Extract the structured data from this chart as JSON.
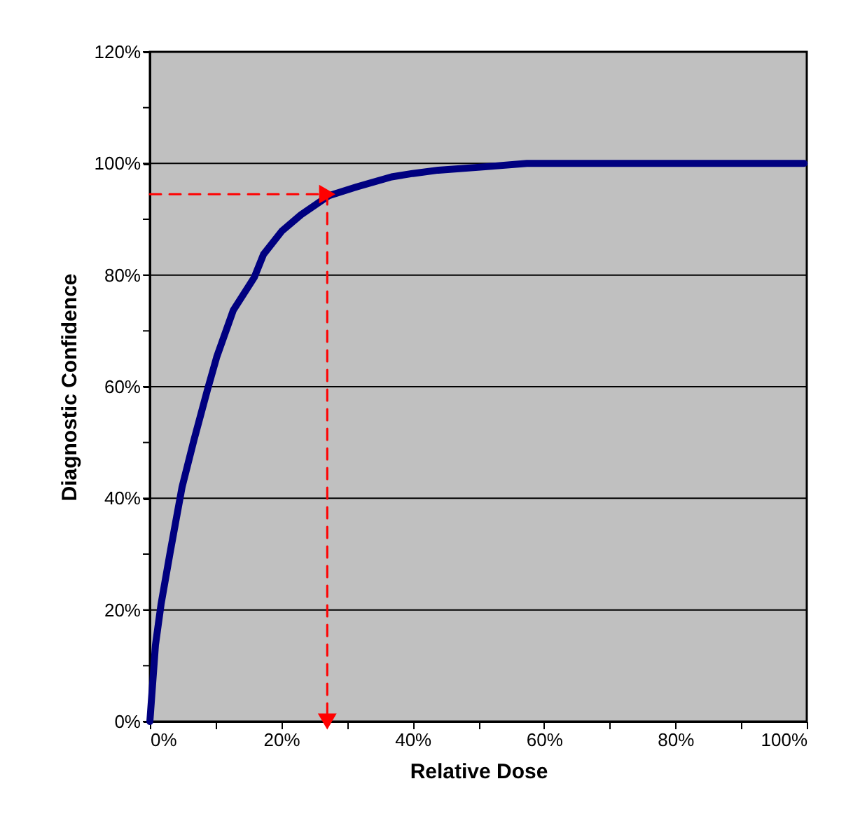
{
  "chart_data": {
    "type": "line",
    "xlabel": "Relative Dose",
    "ylabel": "Diagnostic Confidence",
    "xlim": [
      0,
      100
    ],
    "ylim": [
      0,
      120
    ],
    "xticks": [
      {
        "value": 0,
        "label": "0%"
      },
      {
        "value": 10,
        "label": null
      },
      {
        "value": 20,
        "label": "20%"
      },
      {
        "value": 30,
        "label": null
      },
      {
        "value": 40,
        "label": "40%"
      },
      {
        "value": 50,
        "label": null
      },
      {
        "value": 60,
        "label": "60%"
      },
      {
        "value": 70,
        "label": null
      },
      {
        "value": 80,
        "label": "80%"
      },
      {
        "value": 90,
        "label": null
      },
      {
        "value": 100,
        "label": "100%"
      }
    ],
    "yticks": [
      {
        "value": 0,
        "label": "0%"
      },
      {
        "value": 10,
        "label": null
      },
      {
        "value": 20,
        "label": "20%"
      },
      {
        "value": 30,
        "label": null
      },
      {
        "value": 40,
        "label": "40%"
      },
      {
        "value": 50,
        "label": null
      },
      {
        "value": 60,
        "label": "60%"
      },
      {
        "value": 70,
        "label": null
      },
      {
        "value": 80,
        "label": "80%"
      },
      {
        "value": 90,
        "label": null
      },
      {
        "value": 100,
        "label": "100%"
      },
      {
        "value": 110,
        "label": null
      },
      {
        "value": 120,
        "label": "120%"
      }
    ],
    "grid": "y",
    "series": [
      {
        "color": "#000080",
        "line_style": "solid",
        "marker": "none",
        "x": [
          0,
          0.85,
          1.7,
          3.1,
          4.9,
          6.7,
          8.8,
          10.2,
          12.7,
          15.9,
          17.3,
          20.1,
          23,
          27.2,
          31.5,
          36.8,
          40,
          43.9,
          51,
          57.4,
          99.6
        ],
        "values": [
          0,
          13.7,
          21,
          30.4,
          42,
          50.4,
          59.6,
          65.4,
          73.7,
          79.6,
          83.7,
          87.9,
          90.8,
          94.2,
          95.8,
          97.6,
          98.2,
          98.8,
          99.4,
          100,
          100
        ]
      },
      {
        "color": "#ff0000",
        "line_style": "dashed",
        "marker": "triangle",
        "x": [
          0,
          27,
          27
        ],
        "values": [
          94.5,
          94.5,
          0
        ]
      }
    ]
  }
}
